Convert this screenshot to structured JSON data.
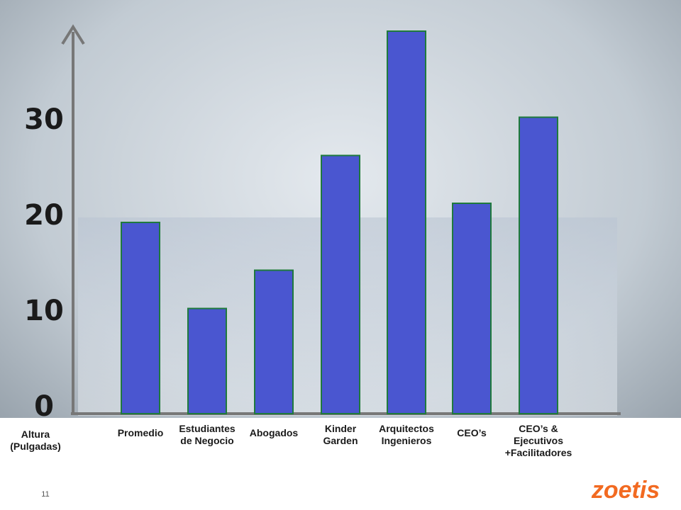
{
  "chart_data": {
    "type": "bar",
    "y_label": "Altura\n(Pulgadas)",
    "categories": [
      "Promedio",
      "Estudiantes\nde Negocio",
      "Abogados",
      "Kinder\nGarden",
      "Arquitectos\nIngenieros",
      "CEO’s",
      "CEO’s &\nEjecutivos\n+Facilitadores"
    ],
    "values": [
      20,
      11,
      15,
      27,
      40,
      22,
      31
    ],
    "color": "#4a56d0",
    "ylim": [
      0,
      40
    ],
    "yticks": [
      0,
      10,
      20,
      30
    ],
    "page_number": "11",
    "logo": "zoetis"
  }
}
